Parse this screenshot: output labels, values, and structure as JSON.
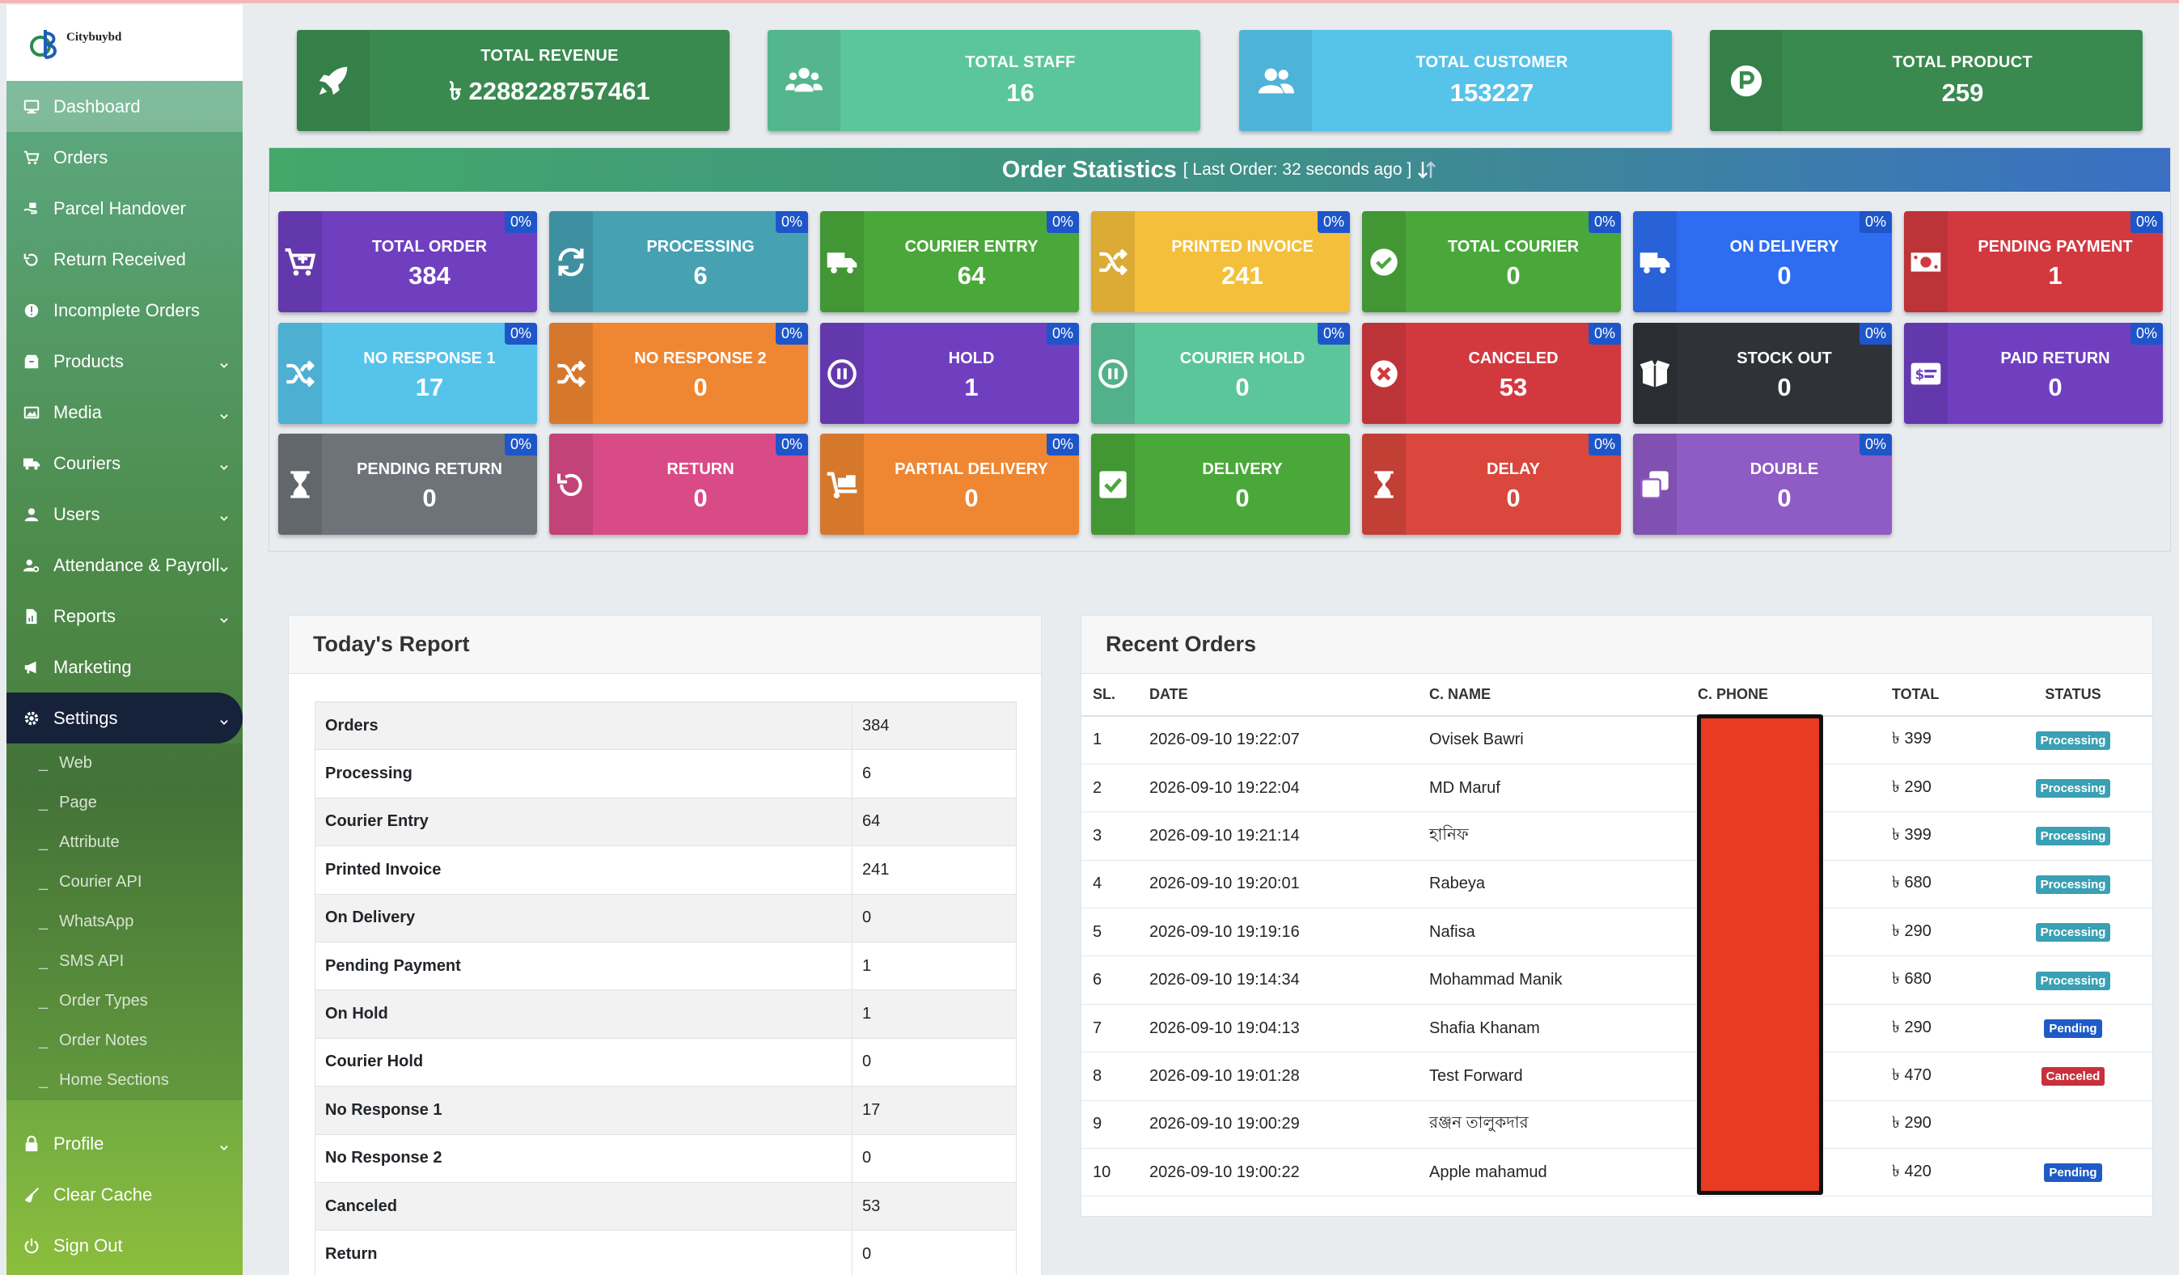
{
  "brand": {
    "name": "Citybuybd"
  },
  "sidebar": {
    "items": [
      {
        "label": "Dashboard",
        "icon": "monitor-icon",
        "active": true
      },
      {
        "label": "Orders",
        "icon": "cart-icon"
      },
      {
        "label": "Parcel Handover",
        "icon": "handover-icon"
      },
      {
        "label": "Return Received",
        "icon": "undo-icon"
      },
      {
        "label": "Incomplete Orders",
        "icon": "alert-circle-icon"
      },
      {
        "label": "Products",
        "icon": "box-icon",
        "expandable": true
      },
      {
        "label": "Media",
        "icon": "image-icon",
        "expandable": true
      },
      {
        "label": "Couriers",
        "icon": "truck-icon",
        "expandable": true
      },
      {
        "label": "Users",
        "icon": "user-icon",
        "expandable": true
      },
      {
        "label": "Attendance & Payroll",
        "icon": "user-cog-icon",
        "expandable": true
      },
      {
        "label": "Reports",
        "icon": "file-chart-icon",
        "expandable": true
      },
      {
        "label": "Marketing",
        "icon": "megaphone-icon"
      },
      {
        "label": "Settings",
        "icon": "gear-icon",
        "expandable": true,
        "open": true
      }
    ],
    "settings_sub": [
      "Web",
      "Page",
      "Attribute",
      "Courier API",
      "WhatsApp",
      "SMS API",
      "Order Types",
      "Order Notes",
      "Home Sections"
    ],
    "bottom": [
      {
        "label": "Profile",
        "icon": "lock-icon",
        "expandable": true
      },
      {
        "label": "Clear Cache",
        "icon": "broom-icon"
      },
      {
        "label": "Sign Out",
        "icon": "power-icon"
      }
    ]
  },
  "stats": [
    {
      "label": "TOTAL REVENUE",
      "value": "৳ 2288228757461",
      "icon": "rocket-icon",
      "color": "#3a8a50"
    },
    {
      "label": "TOTAL STAFF",
      "value": "16",
      "icon": "users-icon",
      "color": "#5bc69a"
    },
    {
      "label": "TOTAL CUSTOMER",
      "value": "153227",
      "icon": "user-group-icon",
      "color": "#56c3ea"
    },
    {
      "label": "TOTAL PRODUCT",
      "value": "259",
      "icon": "product-p-icon",
      "color": "#3a8a50"
    }
  ],
  "order_stats": {
    "title": "Order Statistics",
    "subtitle": "[ Last Order: 32 seconds ago ]",
    "tiles": [
      {
        "label": "TOTAL ORDER",
        "value": "384",
        "pct": "0%",
        "color": "#6f3fc0",
        "icon": "cart-plus-icon"
      },
      {
        "label": "PROCESSING",
        "value": "6",
        "pct": "0%",
        "color": "#46a1b3",
        "icon": "refresh-icon"
      },
      {
        "label": "COURIER ENTRY",
        "value": "64",
        "pct": "0%",
        "color": "#4aa83a",
        "icon": "truck-icon"
      },
      {
        "label": "PRINTED INVOICE",
        "value": "241",
        "pct": "0%",
        "color": "#f4bf3b",
        "icon": "shuffle-icon"
      },
      {
        "label": "TOTAL COURIER",
        "value": "0",
        "pct": "0%",
        "color": "#4aa83a",
        "icon": "check-circle-icon"
      },
      {
        "label": "ON DELIVERY",
        "value": "0",
        "pct": "0%",
        "color": "#2e6cf2",
        "icon": "truck-icon"
      },
      {
        "label": "PENDING PAYMENT",
        "value": "1",
        "pct": "0%",
        "color": "#d2393f",
        "icon": "money-bill-icon"
      },
      {
        "label": "NO RESPONSE 1",
        "value": "17",
        "pct": "0%",
        "color": "#56c3ea",
        "icon": "shuffle-icon"
      },
      {
        "label": "NO RESPONSE 2",
        "value": "0",
        "pct": "0%",
        "color": "#ef8631",
        "icon": "shuffle-icon"
      },
      {
        "label": "HOLD",
        "value": "1",
        "pct": "0%",
        "color": "#6f3fc0",
        "icon": "pause-circle-icon"
      },
      {
        "label": "COURIER HOLD",
        "value": "0",
        "pct": "0%",
        "color": "#5bc69a",
        "icon": "pause-circle-icon"
      },
      {
        "label": "CANCELED",
        "value": "53",
        "pct": "0%",
        "color": "#d2393f",
        "icon": "x-circle-icon"
      },
      {
        "label": "STOCK OUT",
        "value": "0",
        "pct": "0%",
        "color": "#2f3338",
        "icon": "open-box-icon"
      },
      {
        "label": "PAID RETURN",
        "value": "0",
        "pct": "0%",
        "color": "#6f3fc0",
        "icon": "dollar-card-icon"
      },
      {
        "label": "PENDING RETURN",
        "value": "0",
        "pct": "0%",
        "color": "#6e7379",
        "icon": "hourglass-icon"
      },
      {
        "label": "RETURN",
        "value": "0",
        "pct": "0%",
        "color": "#d94b86",
        "icon": "undo-icon"
      },
      {
        "label": "PARTIAL DELIVERY",
        "value": "0",
        "pct": "0%",
        "color": "#ef8631",
        "icon": "dolly-icon"
      },
      {
        "label": "DELIVERY",
        "value": "0",
        "pct": "",
        "color": "#4aa83a",
        "icon": "check-square-icon"
      },
      {
        "label": "DELAY",
        "value": "0",
        "pct": "0%",
        "color": "#d9473d",
        "icon": "hourglass-icon"
      },
      {
        "label": "DOUBLE",
        "value": "0",
        "pct": "0%",
        "color": "#8f5bc4",
        "icon": "copy-icon"
      }
    ]
  },
  "todays_report": {
    "title": "Today's Report",
    "rows": [
      {
        "k": "Orders",
        "v": "384"
      },
      {
        "k": "Processing",
        "v": "6"
      },
      {
        "k": "Courier Entry",
        "v": "64"
      },
      {
        "k": "Printed Invoice",
        "v": "241"
      },
      {
        "k": "On Delivery",
        "v": "0"
      },
      {
        "k": "Pending Payment",
        "v": "1"
      },
      {
        "k": "On Hold",
        "v": "1"
      },
      {
        "k": "Courier Hold",
        "v": "0"
      },
      {
        "k": "No Response 1",
        "v": "17"
      },
      {
        "k": "No Response 2",
        "v": "0"
      },
      {
        "k": "Canceled",
        "v": "53"
      },
      {
        "k": "Return",
        "v": "0"
      }
    ]
  },
  "recent_orders": {
    "title": "Recent Orders",
    "columns": [
      "SL.",
      "DATE",
      "C. NAME",
      "C. PHONE",
      "TOTAL",
      "STATUS"
    ],
    "rows": [
      {
        "sl": "1",
        "date": "2026-09-10 19:22:07",
        "name": "Ovisek Bawri",
        "total": "৳ 399",
        "status": "Processing",
        "status_kind": "proc"
      },
      {
        "sl": "2",
        "date": "2026-09-10 19:22:04",
        "name": "MD Maruf",
        "total": "৳ 290",
        "status": "Processing",
        "status_kind": "proc"
      },
      {
        "sl": "3",
        "date": "2026-09-10 19:21:14",
        "name": "হানিফ",
        "total": "৳ 399",
        "status": "Processing",
        "status_kind": "proc"
      },
      {
        "sl": "4",
        "date": "2026-09-10 19:20:01",
        "name": "Rabeya",
        "total": "৳ 680",
        "status": "Processing",
        "status_kind": "proc"
      },
      {
        "sl": "5",
        "date": "2026-09-10 19:19:16",
        "name": "Nafisa",
        "total": "৳ 290",
        "status": "Processing",
        "status_kind": "proc"
      },
      {
        "sl": "6",
        "date": "2026-09-10 19:14:34",
        "name": "Mohammad Manik",
        "total": "৳ 680",
        "status": "Processing",
        "status_kind": "proc"
      },
      {
        "sl": "7",
        "date": "2026-09-10 19:04:13",
        "name": "Shafia Khanam",
        "total": "৳ 290",
        "status": "Pending",
        "status_kind": "pend"
      },
      {
        "sl": "8",
        "date": "2026-09-10 19:01:28",
        "name": "Test Forward",
        "total": "৳ 470",
        "status": "Canceled",
        "status_kind": "canc"
      },
      {
        "sl": "9",
        "date": "2026-09-10 19:00:29",
        "name": "রঞ্জন তালুকদার",
        "total": "৳ 290",
        "status": "",
        "status_kind": ""
      },
      {
        "sl": "10",
        "date": "2026-09-10 19:00:22",
        "name": "Apple mahamud",
        "total": "৳ 420",
        "status": "Pending",
        "status_kind": "pend"
      }
    ]
  }
}
